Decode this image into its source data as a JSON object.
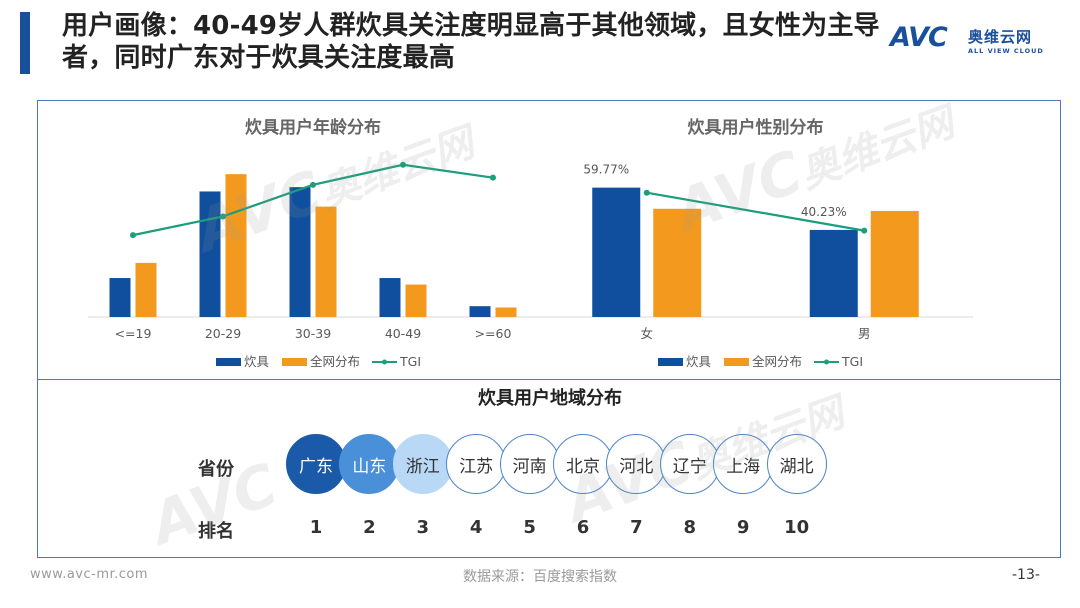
{
  "header": {
    "title": "用户画像：40-49岁人群炊具关注度明显高于其他领域，且女性为主导者，同时广东对于炊具关注度最高"
  },
  "logo": {
    "mark": "AVC",
    "cn": "奥维云网",
    "en": "ALL VIEW CLOUD"
  },
  "watermark": {
    "mark": "AVC",
    "cn": "奥维云网",
    "en": "ALL VIEW CLOUD"
  },
  "legend": {
    "series1": "炊具",
    "series2": "全网分布",
    "series3": "TGI"
  },
  "chart_data": [
    {
      "type": "bar",
      "title": "炊具用户年龄分布",
      "categories": [
        "<=19",
        "20-29",
        "30-39",
        "40-49",
        ">=60"
      ],
      "series": [
        {
          "name": "炊具",
          "kind": "bar",
          "color": "#0f4f9e",
          "values": [
            9,
            29,
            30,
            9,
            2.5
          ]
        },
        {
          "name": "全网分布",
          "kind": "bar",
          "color": "#f39a1e",
          "values": [
            12.5,
            33,
            25.5,
            7.5,
            2.2
          ]
        },
        {
          "name": "TGI",
          "kind": "line",
          "color": "#1a9e7b",
          "values": [
            57,
            70,
            92,
            106,
            97
          ]
        }
      ],
      "legend_position": "bottom"
    },
    {
      "type": "bar",
      "title": "炊具用户性别分布",
      "categories": [
        "女",
        "男"
      ],
      "series": [
        {
          "name": "炊具",
          "kind": "bar",
          "color": "#0f4f9e",
          "values": [
            59.77,
            40.23
          ],
          "labels": [
            "59.77%",
            "40.23%"
          ]
        },
        {
          "name": "全网分布",
          "kind": "bar",
          "color": "#f39a1e",
          "values": [
            50,
            49
          ]
        },
        {
          "name": "TGI",
          "kind": "line",
          "color": "#1a9e7b",
          "values": [
            118,
            82
          ]
        }
      ],
      "legend_position": "bottom"
    }
  ],
  "region": {
    "title": "炊具用户地域分布",
    "row_province_label": "省份",
    "row_rank_label": "排名",
    "provinces": [
      "广东",
      "山东",
      "浙江",
      "江苏",
      "河南",
      "北京",
      "河北",
      "辽宁",
      "上海",
      "湖北"
    ],
    "ranks": [
      "1",
      "2",
      "3",
      "4",
      "5",
      "6",
      "7",
      "8",
      "9",
      "10"
    ],
    "top_colors": [
      "#1a5aa8",
      "#4a90d9",
      "#b8d8f5"
    ]
  },
  "footer": {
    "url": "www.avc-mr.com",
    "source": "数据来源：百度搜索指数",
    "page": "-13-"
  }
}
